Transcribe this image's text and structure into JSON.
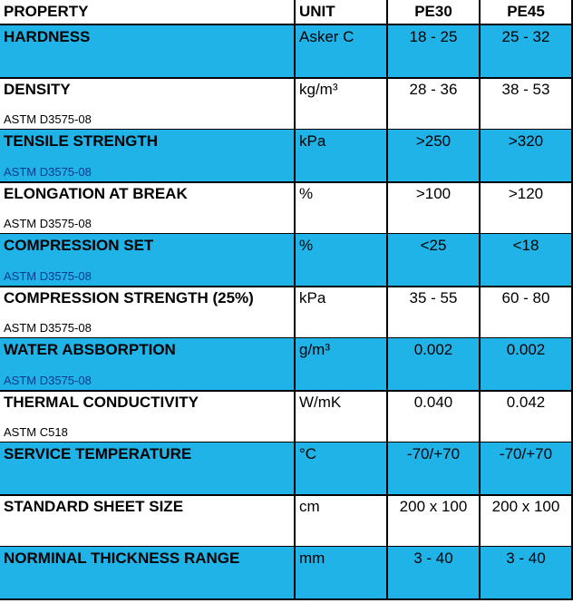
{
  "table": {
    "header": [
      "PROPERTY",
      "UNIT",
      "PE30",
      "PE45"
    ],
    "rows": [
      {
        "property": "HARDNESS",
        "unit": "Asker C",
        "pe30": "18 - 25",
        "pe45": "25 - 32"
      },
      {
        "property": "DENSITY",
        "standard": "ASTM D3575-08",
        "unit": "kg/m³",
        "pe30": "28 - 36",
        "pe45": "38 - 53"
      },
      {
        "property": "TENSILE STRENGTH",
        "standard": "ASTM D3575-08",
        "unit": "kPa",
        "pe30": ">250",
        "pe45": ">320"
      },
      {
        "property": "ELONGATION AT BREAK",
        "standard": "ASTM D3575-08",
        "unit": "%",
        "pe30": ">100",
        "pe45": ">120"
      },
      {
        "property": "COMPRESSION SET",
        "standard": "ASTM D3575-08",
        "unit": "%",
        "pe30": "<25",
        "pe45": "<18"
      },
      {
        "property": "COMPRESSION STRENGTH (25%)",
        "standard": "ASTM D3575-08",
        "unit": "kPa",
        "pe30": "35 - 55",
        "pe45": "60 - 80"
      },
      {
        "property": "WATER ABSBORPTION",
        "standard": "ASTM D3575-08",
        "unit": "g/m³",
        "pe30": "0.002",
        "pe45": "0.002"
      },
      {
        "property": "THERMAL CONDUCTIVITY",
        "standard": "ASTM C518",
        "unit": "W/mK",
        "pe30": "0.040",
        "pe45": "0.042"
      },
      {
        "property": "SERVICE TEMPERATURE",
        "unit": "°C",
        "pe30": "-70/+70",
        "pe45": "-70/+70"
      },
      {
        "property": "STANDARD SHEET SIZE",
        "unit": "cm",
        "pe30": "200 x 100",
        "pe45": "200 x 100"
      },
      {
        "property": "NORMINAL THICKNESS RANGE",
        "unit": "mm",
        "pe30": "3 - 40",
        "pe45": "3 - 40"
      }
    ]
  }
}
